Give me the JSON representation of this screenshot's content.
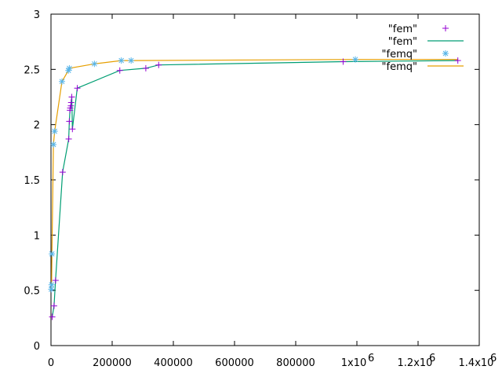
{
  "chart_data": {
    "type": "scatter",
    "xlim": [
      0,
      1400000
    ],
    "ylim": [
      0,
      3
    ],
    "x_ticks": [
      0,
      200000,
      400000,
      600000,
      800000,
      1000000,
      1200000,
      1400000
    ],
    "x_tick_labels": [
      "0",
      "200000",
      "400000",
      "600000",
      "800000",
      "1x10",
      "1.2x10",
      "1.4x10"
    ],
    "x_tick_exponents": [
      "",
      "",
      "",
      "",
      "",
      "6",
      "6",
      "6"
    ],
    "y_ticks": [
      0,
      0.5,
      1,
      1.5,
      2,
      2.5,
      3
    ],
    "y_tick_labels": [
      "0",
      "0.5",
      "1",
      "1.5",
      "2",
      "2.5",
      "3"
    ],
    "grid": false,
    "legend_position": "top-right",
    "series": [
      {
        "name": "\"fem\"",
        "style": "points",
        "marker": "plus",
        "color": "#9400d3",
        "x": [
          4000,
          10000,
          15000,
          38000,
          58000,
          60000,
          62000,
          63000,
          65000,
          66000,
          68000,
          70000,
          86000,
          225000,
          310000,
          352000,
          955000,
          1330000
        ],
        "y": [
          0.26,
          0.36,
          0.59,
          1.57,
          1.87,
          2.03,
          2.13,
          2.15,
          2.17,
          2.2,
          2.25,
          1.96,
          2.33,
          2.49,
          2.51,
          2.54,
          2.57,
          2.58
        ]
      },
      {
        "name": "\"fem\"",
        "style": "line",
        "color": "#009e73",
        "x": [
          4000,
          10000,
          15000,
          38000,
          58000,
          60000,
          62000,
          63000,
          65000,
          66000,
          68000,
          70000,
          86000,
          225000,
          310000,
          352000,
          955000,
          1330000
        ],
        "y": [
          0.26,
          0.36,
          0.59,
          1.57,
          1.87,
          2.03,
          2.13,
          2.15,
          2.17,
          2.2,
          2.25,
          1.96,
          2.33,
          2.49,
          2.51,
          2.54,
          2.57,
          2.58
        ]
      },
      {
        "name": "\"femq\"",
        "style": "points",
        "marker": "star",
        "color": "#56b4e9",
        "x": [
          1000,
          2000,
          3000,
          8000,
          12000,
          36000,
          57000,
          60000,
          142000,
          230000,
          262000,
          995000
        ],
        "y": [
          0.51,
          0.55,
          0.83,
          1.82,
          1.94,
          2.39,
          2.49,
          2.51,
          2.55,
          2.58,
          2.58,
          2.59
        ]
      },
      {
        "name": "\"femq\"",
        "style": "line",
        "color": "#e69f00",
        "x": [
          1000,
          2000,
          3000,
          8000,
          12000,
          36000,
          57000,
          60000,
          142000,
          230000,
          262000,
          995000,
          1330000
        ],
        "y": [
          0.51,
          0.55,
          0.83,
          1.82,
          1.94,
          2.39,
          2.49,
          2.51,
          2.55,
          2.58,
          2.58,
          2.59,
          2.59
        ]
      }
    ]
  }
}
